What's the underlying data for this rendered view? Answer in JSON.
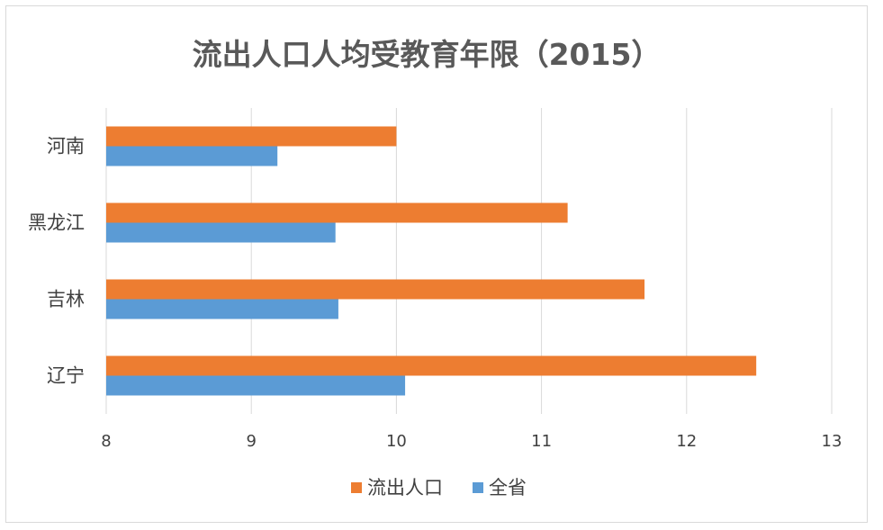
{
  "chart_data": {
    "type": "bar",
    "orientation": "horizontal",
    "title": "流出人口人均受教育年限（2015）",
    "categories": [
      "河南",
      "黑龙江",
      "吉林",
      "辽宁"
    ],
    "series": [
      {
        "name": "流出人口",
        "color": "#ED7D31",
        "values": [
          10.0,
          11.18,
          11.71,
          12.48
        ]
      },
      {
        "name": "全省",
        "color": "#5B9BD5",
        "values": [
          9.18,
          9.58,
          9.6,
          10.06
        ]
      }
    ],
    "xlim": [
      8,
      13
    ],
    "xticks": [
      "8",
      "9",
      "10",
      "11",
      "12",
      "13"
    ],
    "xlabel": "",
    "ylabel": "",
    "grid": true,
    "legend_position": "bottom"
  }
}
